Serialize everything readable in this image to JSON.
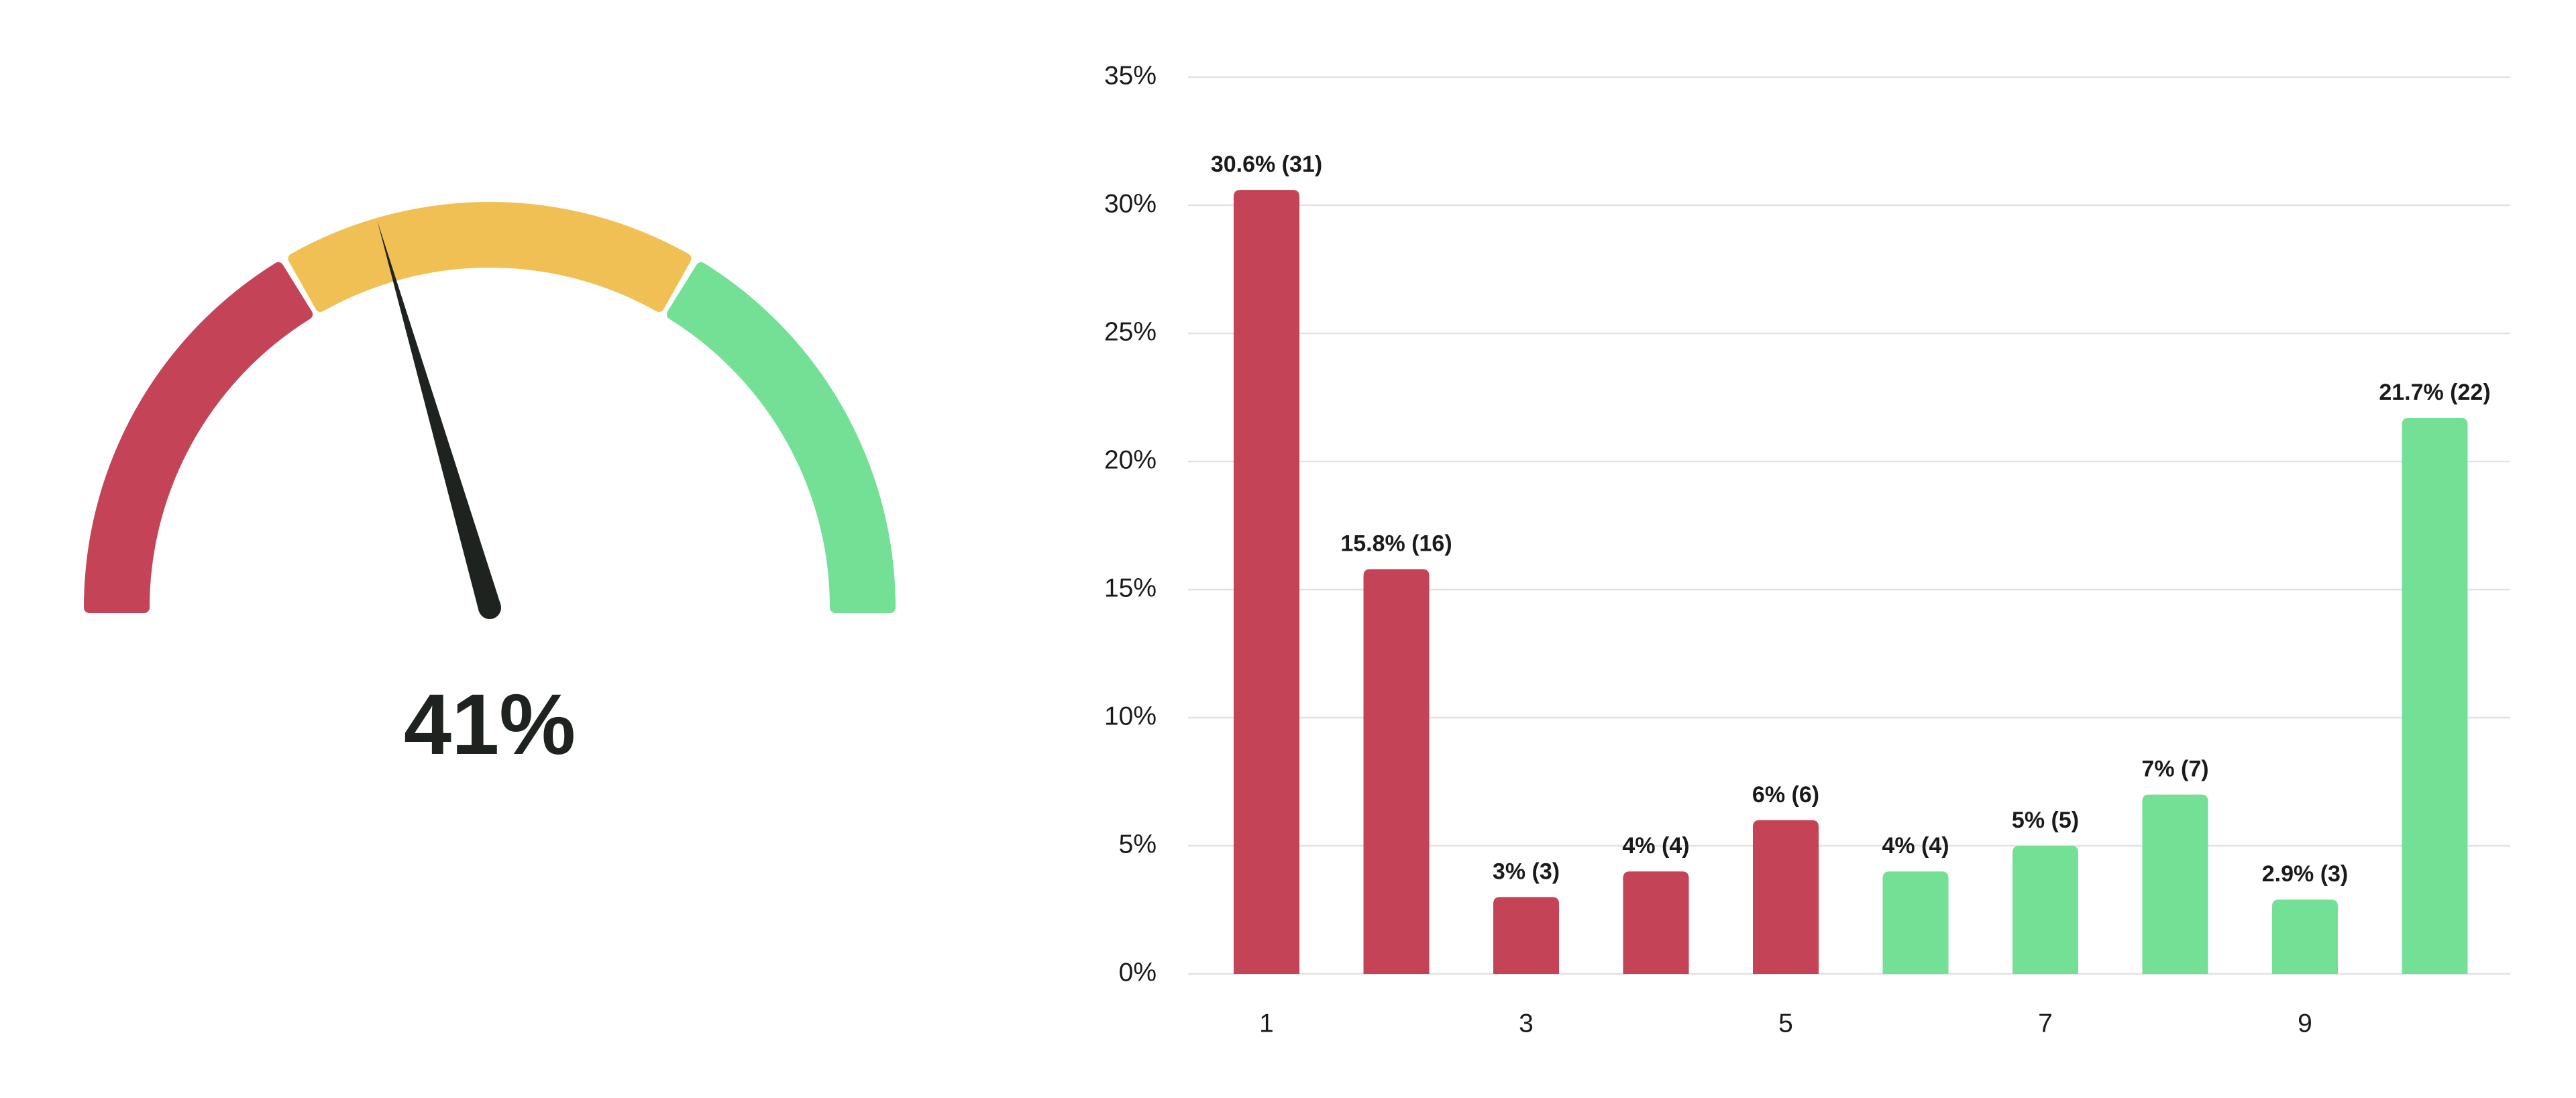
{
  "chart_data": [
    {
      "type": "gauge",
      "values": [
        41
      ],
      "value_labels": [
        "41%"
      ],
      "range": [
        0,
        100
      ],
      "band_edges": [
        0,
        33,
        67,
        100
      ],
      "band_colors": [
        "#c44356",
        "#f0c054",
        "#74e096"
      ],
      "needle_color": "#1e2320"
    },
    {
      "type": "bar",
      "categories": [
        "1",
        null,
        "3",
        null,
        "5",
        null,
        "7",
        null,
        "9",
        null
      ],
      "values": [
        30.6,
        15.8,
        3,
        4,
        6,
        4,
        5,
        7,
        2.9,
        21.7
      ],
      "value_labels": [
        "30.6% (31)",
        "15.8% (16)",
        "3% (3)",
        "4% (4)",
        "6% (6)",
        "4% (4)",
        "5% (5)",
        "7% (7)",
        "2.9% (3)",
        "21.7% (22)"
      ],
      "colors": [
        "#c44356",
        "#c44356",
        "#c44356",
        "#c44356",
        "#c44356",
        "#74e096",
        "#74e096",
        "#74e096",
        "#74e096",
        "#74e096"
      ],
      "ylim": [
        0,
        35
      ],
      "yticks": [
        {
          "value": 0,
          "label": "0%"
        },
        {
          "value": 5,
          "label": "5%"
        },
        {
          "value": 10,
          "label": "10%"
        },
        {
          "value": 15,
          "label": "15%"
        },
        {
          "value": 20,
          "label": "20%"
        },
        {
          "value": 25,
          "label": "25%"
        },
        {
          "value": 30,
          "label": "30%"
        },
        {
          "value": 35,
          "label": "35%"
        }
      ],
      "grid": true
    }
  ]
}
